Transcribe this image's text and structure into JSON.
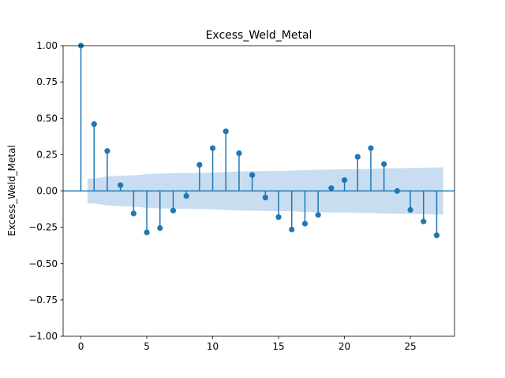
{
  "chart_data": {
    "type": "stem",
    "title": "Excess_Weld_Metal",
    "xlabel": "",
    "ylabel": "Excess_Weld_Metal",
    "xlim": [
      -1.35,
      28.35
    ],
    "ylim": [
      -1.0,
      1.0
    ],
    "xticks": [
      0,
      5,
      10,
      15,
      20,
      25
    ],
    "xtick_labels": [
      "0",
      "5",
      "10",
      "15",
      "20",
      "25"
    ],
    "yticks": [
      -1.0,
      -0.75,
      -0.5,
      -0.25,
      0.0,
      0.25,
      0.5,
      0.75,
      1.0
    ],
    "ytick_labels": [
      "−1.00",
      "−0.75",
      "−0.50",
      "−0.25",
      "0.00",
      "0.25",
      "0.50",
      "0.75",
      "1.00"
    ],
    "grid": false,
    "series": [
      {
        "lags": [
          0,
          1,
          2,
          3,
          4,
          5,
          6,
          7,
          8,
          9,
          10,
          11,
          12,
          13,
          14,
          15,
          16,
          17,
          18,
          19,
          20,
          21,
          22,
          23,
          24,
          25,
          26,
          27
        ],
        "values": [
          1.0,
          0.46,
          0.275,
          0.04,
          -0.155,
          -0.285,
          -0.255,
          -0.135,
          -0.035,
          0.18,
          0.295,
          0.41,
          0.26,
          0.11,
          -0.045,
          -0.18,
          -0.265,
          -0.225,
          -0.165,
          0.02,
          0.075,
          0.235,
          0.295,
          0.185,
          0.0,
          -0.13,
          -0.21,
          -0.305
        ]
      }
    ],
    "confidence_band": {
      "lags": [
        1,
        2,
        3,
        4,
        5,
        6,
        7,
        8,
        9,
        10,
        11,
        12,
        13,
        14,
        15,
        16,
        17,
        18,
        19,
        20,
        21,
        22,
        23,
        24,
        25,
        26,
        27
      ],
      "upper": [
        0.085,
        0.1,
        0.105,
        0.108,
        0.115,
        0.12,
        0.122,
        0.123,
        0.124,
        0.126,
        0.13,
        0.135,
        0.136,
        0.137,
        0.138,
        0.14,
        0.144,
        0.146,
        0.148,
        0.149,
        0.15,
        0.152,
        0.155,
        0.157,
        0.158,
        0.16,
        0.162
      ]
    },
    "colors": {
      "stem": "#1f77b4",
      "band": "#c6dbef",
      "axis": "#000000"
    }
  }
}
